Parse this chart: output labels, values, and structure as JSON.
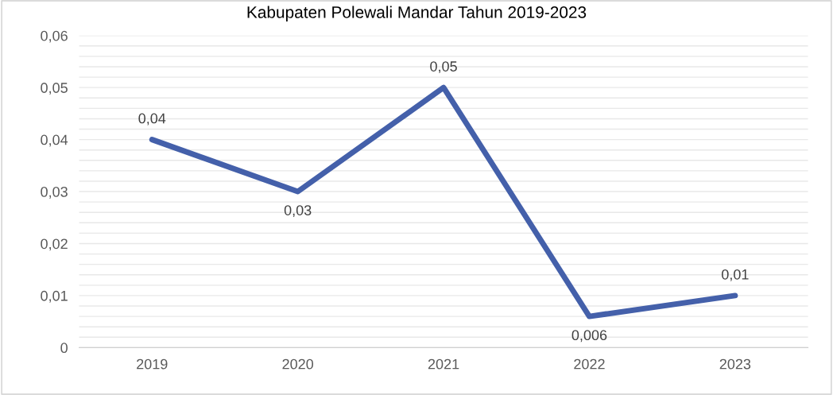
{
  "chart_data": {
    "type": "line",
    "title": "Kabupaten Polewali Mandar Tahun 2019-2023",
    "categories": [
      "2019",
      "2020",
      "2021",
      "2022",
      "2023"
    ],
    "series": [
      {
        "color": "#4460aa",
        "values": [
          0.04,
          0.03,
          0.05,
          0.006,
          0.01
        ],
        "value_labels": [
          "0,04",
          "0,03",
          "0,05",
          "0,006",
          "0,01"
        ]
      }
    ],
    "ylim": [
      0,
      0.06
    ],
    "yticks": [
      0,
      {
        "value": 0.002,
        "label": null
      },
      {
        "value": 0.004,
        "label": null
      },
      {
        "value": 0.006,
        "label": null
      },
      {
        "value": 0.008,
        "label": null
      },
      {
        "value": 0.01,
        "label": "0,01"
      },
      {
        "value": 0.012,
        "label": null
      },
      {
        "value": 0.014,
        "label": null
      },
      {
        "value": 0.016,
        "label": null
      },
      {
        "value": 0.018,
        "label": null
      },
      {
        "value": 0.02,
        "label": "0,02"
      },
      {
        "value": 0.022,
        "label": null
      },
      {
        "value": 0.024,
        "label": null
      },
      {
        "value": 0.026,
        "label": null
      },
      {
        "value": 0.028,
        "label": null
      },
      {
        "value": 0.03,
        "label": "0,03"
      },
      {
        "value": 0.032,
        "label": null
      },
      {
        "value": 0.034,
        "label": null
      },
      {
        "value": 0.036,
        "label": null
      },
      {
        "value": 0.038,
        "label": null
      },
      {
        "value": 0.04,
        "label": "0,04"
      },
      {
        "value": 0.042,
        "label": null
      },
      {
        "value": 0.044,
        "label": null
      },
      {
        "value": 0.046,
        "label": null
      },
      {
        "value": 0.048,
        "label": null
      },
      {
        "value": 0.05,
        "label": "0,05"
      },
      {
        "value": 0.052,
        "label": null
      },
      {
        "value": 0.054,
        "label": null
      },
      {
        "value": 0.056,
        "label": null
      },
      {
        "value": 0.058,
        "label": null
      },
      {
        "value": 0.06,
        "label": "0,06"
      }
    ],
    "grid": "y",
    "marker": "none",
    "line_style": "solid"
  }
}
